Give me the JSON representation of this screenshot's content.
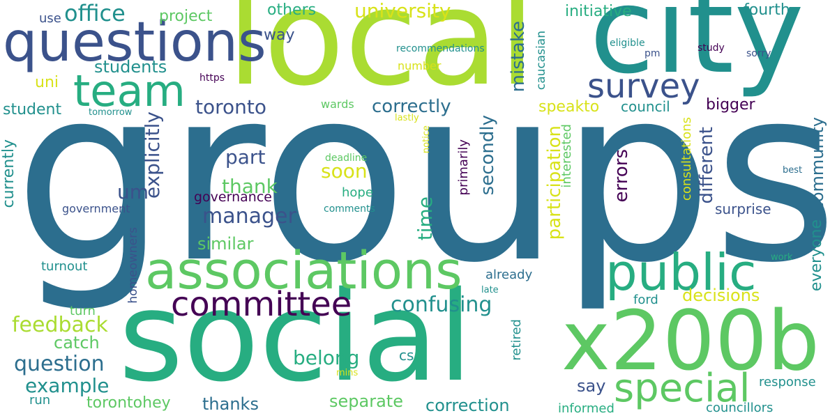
{
  "words": {
    "groups": "groups",
    "local": "local",
    "city": "city",
    "social": "social",
    "x200b": "x200b",
    "questions": "questions",
    "associations": "associations",
    "public": "public",
    "team": "team",
    "special": "special",
    "committee": "committee",
    "survey": "survey",
    "office": "office",
    "toronto": "toronto",
    "confusing": "confusing",
    "feedback": "feedback",
    "manager": "manager",
    "question": "question",
    "example": "example",
    "university": "university",
    "students": "students",
    "correctly": "correctly",
    "part": "part",
    "thank": "thank",
    "soon": "soon",
    "um": "um",
    "governance": "governance",
    "similar": "similar",
    "speakto": "speakto",
    "council": "council",
    "bigger": "bigger",
    "decisions": "decisions",
    "surprise": "surprise",
    "belong": "belong",
    "catch": "catch",
    "torontohey": "torontohey",
    "thanks": "thanks",
    "separate": "separate",
    "correction": "correction",
    "say": "say",
    "response": "response",
    "councillors": "councillors",
    "informed": "informed",
    "others": "others",
    "way": "way",
    "fourth": "fourth",
    "initiative": "initiative",
    "project": "project",
    "use": "use",
    "uni": "uni",
    "student": "student",
    "https": "https",
    "tomorrow": "tomorrow",
    "wards": "wards",
    "lastly": "lastly",
    "number": "number",
    "recommendations": "recommendations",
    "eligible": "eligible",
    "pm": "pm",
    "study": "study",
    "sorry": "sorry",
    "deadline": "deadline",
    "hope": "hope",
    "comments": "comments",
    "government": "government",
    "turnout": "turnout",
    "turn": "turn",
    "run": "run",
    "cs": "cs",
    "mins": "mins",
    "already": "already",
    "late": "late",
    "ford": "ford",
    "free": "free",
    "work": "work",
    "best": "best",
    "mistake": "mistake",
    "caucasian": "caucasian",
    "explicitly": "explicitly",
    "secondly": "secondly",
    "time": "time",
    "participation": "participation",
    "primarily": "primarily",
    "interested": "interested",
    "errors": "errors",
    "different": "different",
    "community": "community",
    "consultations": "consultations",
    "everyone": "everyone",
    "currently": "currently",
    "homeowners": "homeowners",
    "notice": "notice",
    "retired": "retired"
  },
  "colors": {
    "dark_purple": "#440154",
    "indigo": "#3b528b",
    "blue_teal": "#2c6e8e",
    "teal": "#21908d",
    "green_teal": "#27ad81",
    "green": "#5dc863",
    "lime": "#aadc32",
    "yellow": "#d8e219"
  }
}
